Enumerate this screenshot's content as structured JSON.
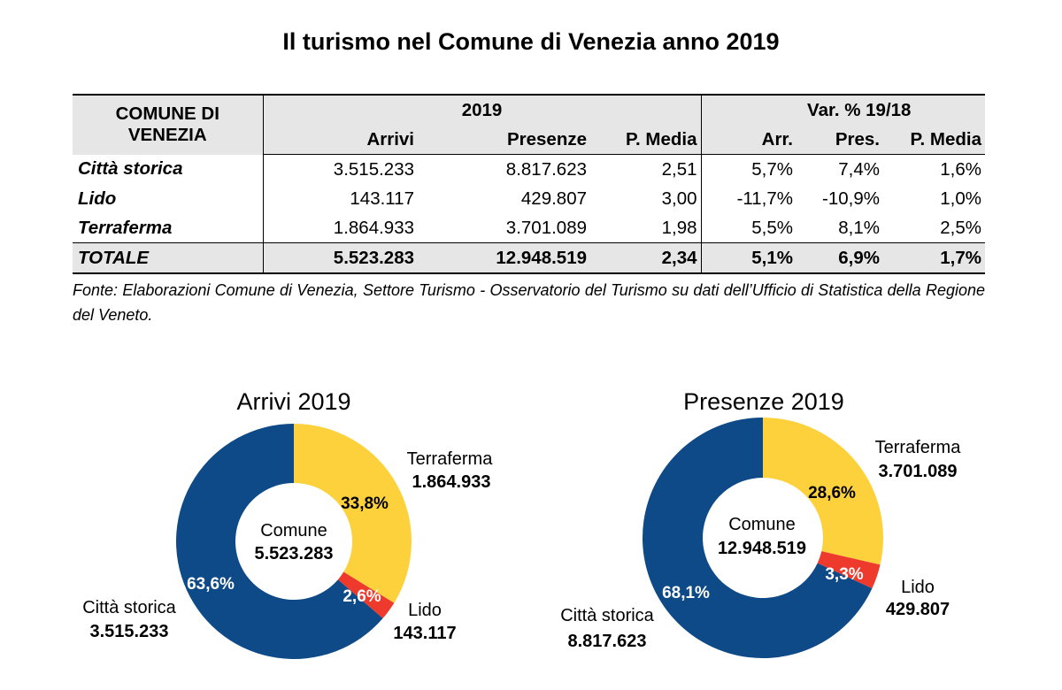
{
  "title": "Il turismo nel Comune di Venezia anno 2019",
  "table": {
    "header": {
      "row_header": "COMUNE DI VENEZIA",
      "group_2019": "2019",
      "group_var": "Var. % 19/18",
      "cols": [
        "Arrivi",
        "Presenze",
        "P. Media",
        "Arr.",
        "Pres.",
        "P. Media"
      ]
    },
    "rows": [
      {
        "label": "Città storica",
        "values": [
          "3.515.233",
          "8.817.623",
          "2,51",
          "5,7%",
          "7,4%",
          "1,6%"
        ]
      },
      {
        "label": "Lido",
        "values": [
          "143.117",
          "429.807",
          "3,00",
          "-11,7%",
          "-10,9%",
          "1,0%"
        ]
      },
      {
        "label": "Terraferma",
        "values": [
          "1.864.933",
          "3.701.089",
          "1,98",
          "5,5%",
          "8,1%",
          "2,5%"
        ]
      }
    ],
    "total": {
      "label": "TOTALE",
      "values": [
        "5.523.283",
        "12.948.519",
        "2,34",
        "5,1%",
        "6,9%",
        "1,7%"
      ]
    }
  },
  "source": "Fonte: Elaborazioni Comune di Venezia, Settore Turismo - Osservatorio del Turismo su dati dell’Ufficio di Statistica della Regione del Veneto.",
  "colors": {
    "citta_storica": "#0d4a87",
    "lido": "#ee3a2c",
    "terraferma": "#fdd13c"
  },
  "chart_data": [
    {
      "type": "pie",
      "title": "Arrivi 2019",
      "center_label": "Comune",
      "center_value": "5.523.283",
      "slices": [
        {
          "name": "Terraferma",
          "value": 1864933,
          "value_label": "1.864.933",
          "percent": 33.8,
          "percent_label": "33,8%",
          "color": "#fdd13c"
        },
        {
          "name": "Lido",
          "value": 143117,
          "value_label": "143.117",
          "percent": 2.6,
          "percent_label": "2,6%",
          "color": "#ee3a2c"
        },
        {
          "name": "Città storica",
          "value": 3515233,
          "value_label": "3.515.233",
          "percent": 63.6,
          "percent_label": "63,6%",
          "color": "#0d4a87"
        }
      ]
    },
    {
      "type": "pie",
      "title": "Presenze 2019",
      "center_label": "Comune",
      "center_value": "12.948.519",
      "slices": [
        {
          "name": "Terraferma",
          "value": 3701089,
          "value_label": "3.701.089",
          "percent": 28.6,
          "percent_label": "28,6%",
          "color": "#fdd13c"
        },
        {
          "name": "Lido",
          "value": 429807,
          "value_label": "429.807",
          "percent": 3.3,
          "percent_label": "3,3%",
          "color": "#ee3a2c"
        },
        {
          "name": "Città storica",
          "value": 8817623,
          "value_label": "8.817.623",
          "percent": 68.1,
          "percent_label": "68,1%",
          "color": "#0d4a87"
        }
      ]
    }
  ]
}
